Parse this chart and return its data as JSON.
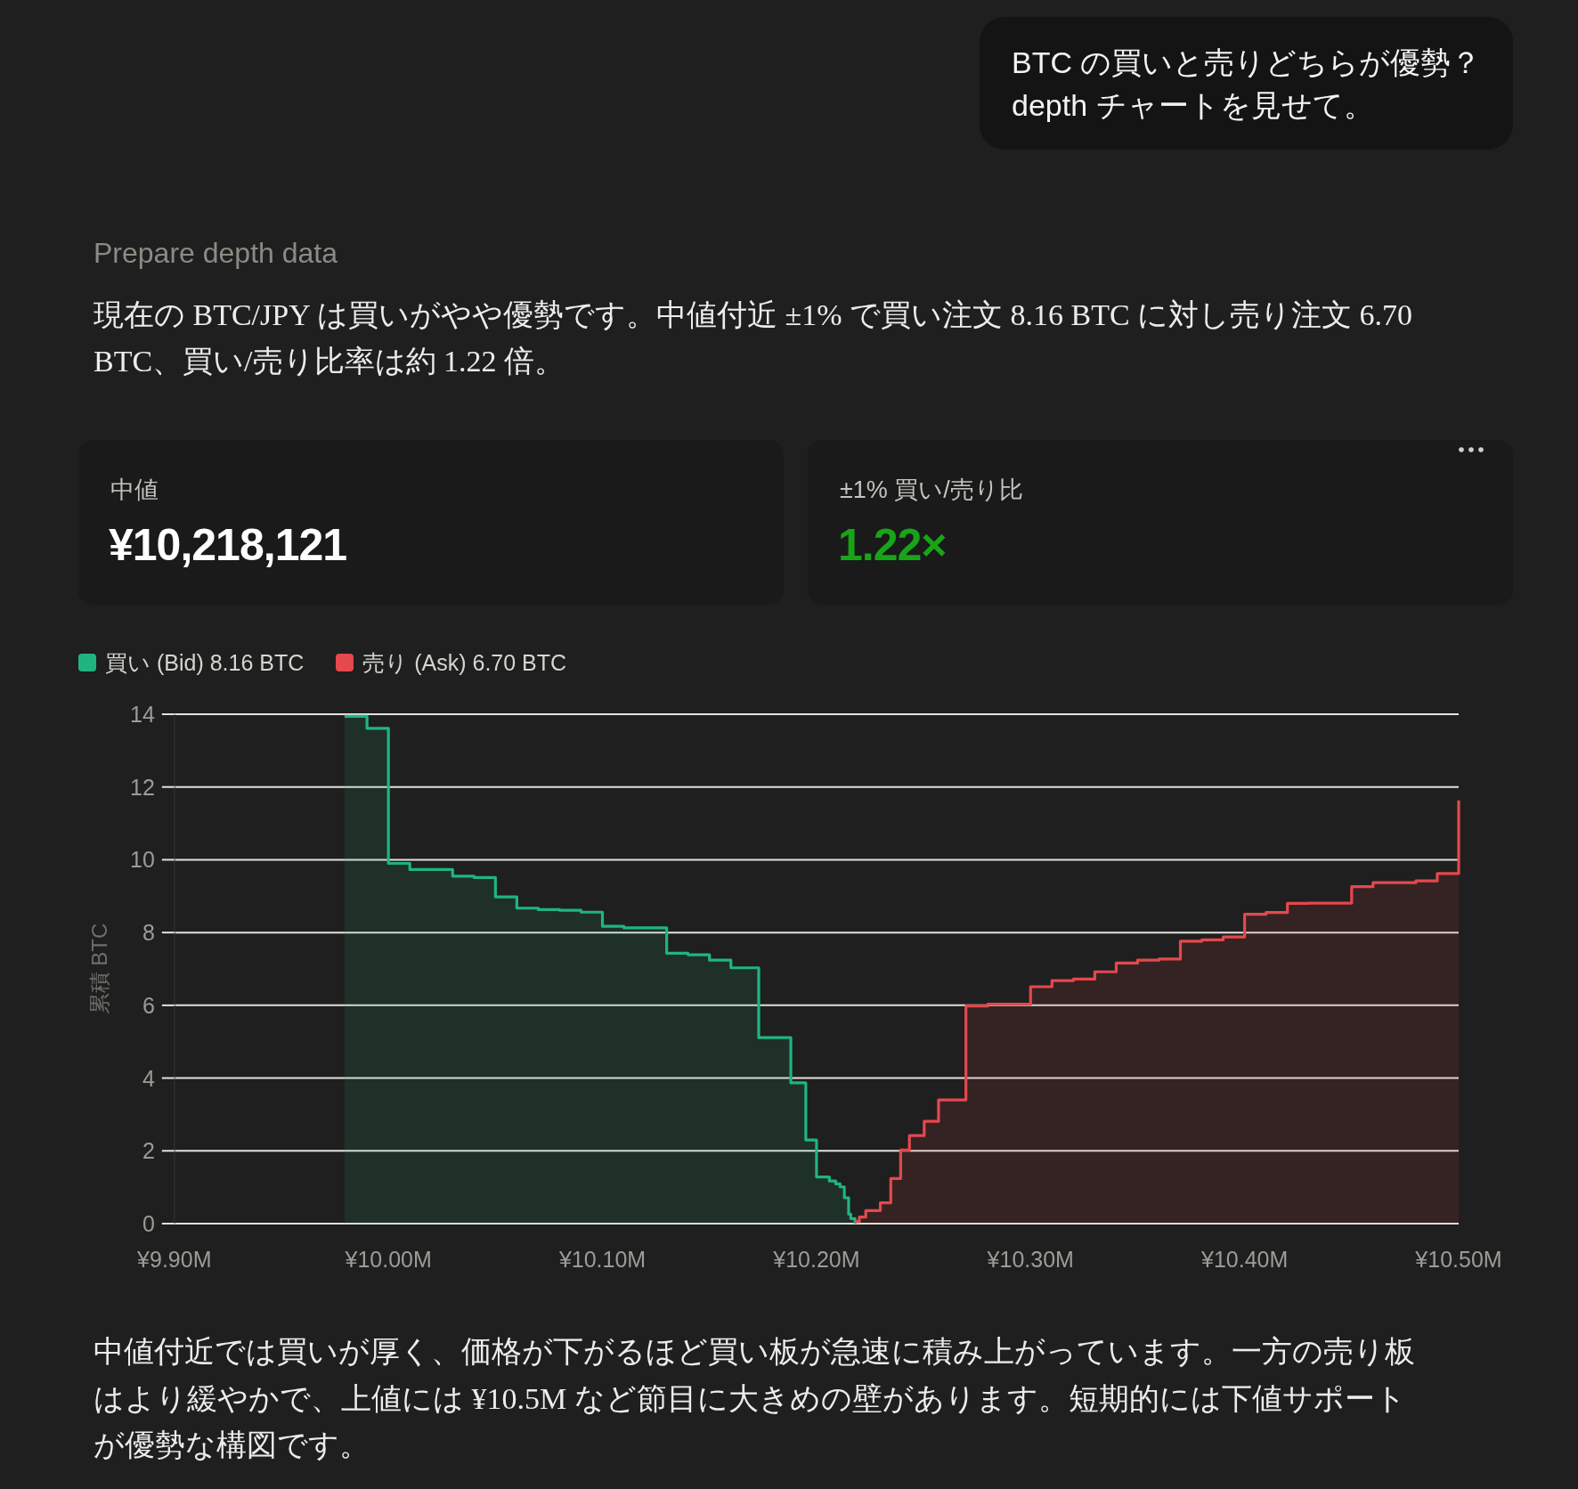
{
  "chart_data": [
    {
      "type": "other",
      "annotations": [
        "BTC の買いと売りどちらが優勢？ depth チャートを見せて。",
        "Prepare depth data",
        "現在の BTC/JPY は買いがやや優勢です。中値付近 ±1% で買い注文 8.16 BTC に対し売り注文 6.70 BTC、買い/売り比率は約 1.22 倍。"
      ]
    },
    {
      "type": "other",
      "title": "中値",
      "annotations": [
        "¥10,218,121"
      ]
    },
    {
      "type": "other",
      "title": "±1% 買い/売り比",
      "annotations": [
        "1.22×"
      ]
    },
    {
      "type": "area",
      "ylabel": "累積 BTC",
      "xlim": [
        9.9,
        10.5
      ],
      "xticks": [
        {
          "value": 9.9,
          "label": "¥9.90M"
        },
        {
          "value": 10.0,
          "label": "¥10.00M"
        },
        {
          "value": 10.1,
          "label": "¥10.10M"
        },
        {
          "value": 10.2,
          "label": "¥10.20M"
        },
        {
          "value": 10.3,
          "label": "¥10.30M"
        },
        {
          "value": 10.4,
          "label": "¥10.40M"
        },
        {
          "value": 10.5,
          "label": "¥10.50M"
        }
      ],
      "ylim": [
        0,
        14
      ],
      "yticks": [
        0,
        2,
        4,
        6,
        8,
        10,
        12,
        14
      ],
      "grid": "y",
      "legend": "top left",
      "series": [
        {
          "name": "買い (Bid) 8.16 BTC",
          "color": "#1fb57f",
          "x": [
            9.9795,
            9.99,
            9.99,
            10.0,
            10.0,
            10.01,
            10.01,
            10.03,
            10.03,
            10.04,
            10.04,
            10.05,
            10.05,
            10.06,
            10.06,
            10.07,
            10.07,
            10.08,
            10.08,
            10.09,
            10.09,
            10.1,
            10.1,
            10.11,
            10.11,
            10.13,
            10.13,
            10.14,
            10.14,
            10.15,
            10.15,
            10.16,
            10.16,
            10.173,
            10.173,
            10.188,
            10.188,
            10.195,
            10.195,
            10.2,
            10.2,
            10.206,
            10.206,
            10.209,
            10.209,
            10.211,
            10.211,
            10.213,
            10.213,
            10.215,
            10.215,
            10.216,
            10.216,
            10.218,
            10.218
          ],
          "values": [
            13.94,
            13.94,
            13.61,
            13.61,
            9.9,
            9.9,
            9.73,
            9.73,
            9.55,
            9.55,
            9.51,
            9.51,
            8.98,
            8.98,
            8.67,
            8.67,
            8.63,
            8.63,
            8.61,
            8.61,
            8.56,
            8.56,
            8.17,
            8.17,
            8.13,
            8.13,
            7.43,
            7.43,
            7.39,
            7.39,
            7.24,
            7.24,
            7.03,
            7.03,
            5.11,
            5.11,
            3.87,
            3.87,
            2.3,
            2.3,
            1.28,
            1.28,
            1.17,
            1.17,
            1.09,
            1.09,
            1.01,
            1.01,
            0.71,
            0.71,
            0.26,
            0.26,
            0.14,
            0.14,
            0
          ]
        },
        {
          "name": "売り (Ask) 6.70 BTC",
          "color": "#e5484d",
          "x": [
            10.2181,
            10.22,
            10.22,
            10.223,
            10.223,
            10.2298,
            10.2298,
            10.2347,
            10.2347,
            10.2393,
            10.2393,
            10.2434,
            10.2434,
            10.2503,
            10.2503,
            10.257,
            10.257,
            10.2698,
            10.2698,
            10.28,
            10.28,
            10.3,
            10.3,
            10.31,
            10.31,
            10.32,
            10.32,
            10.33,
            10.33,
            10.34,
            10.34,
            10.35,
            10.35,
            10.36,
            10.36,
            10.37,
            10.37,
            10.38,
            10.38,
            10.39,
            10.39,
            10.4,
            10.4,
            10.41,
            10.41,
            10.42,
            10.42,
            10.43,
            10.43,
            10.45,
            10.45,
            10.46,
            10.46,
            10.48,
            10.48,
            10.49,
            10.49,
            10.5,
            10.5
          ],
          "values": [
            0.06,
            0.06,
            0.18,
            0.18,
            0.36,
            0.36,
            0.57,
            0.57,
            1.24,
            1.24,
            2.02,
            2.02,
            2.42,
            2.42,
            2.81,
            2.81,
            3.4,
            3.4,
            5.98,
            5.98,
            6.03,
            6.03,
            6.51,
            6.51,
            6.68,
            6.68,
            6.72,
            6.72,
            6.92,
            6.92,
            7.16,
            7.16,
            7.24,
            7.24,
            7.27,
            7.27,
            7.76,
            7.76,
            7.8,
            7.8,
            7.88,
            7.88,
            8.5,
            8.5,
            8.55,
            8.55,
            8.8,
            8.8,
            8.81,
            8.81,
            9.26,
            9.26,
            9.37,
            9.37,
            9.42,
            9.42,
            9.62,
            9.62,
            11.63
          ]
        }
      ],
      "annotations": [
        "中値付近では買いが厚く、価格が下がるほど買い板が急速に積み上がっています。一方の売り板はより緩やかで、上値には ¥10.5M など節目に大きめの壁があります。短期的には下値サポートが優勢な構図です。"
      ]
    }
  ]
}
